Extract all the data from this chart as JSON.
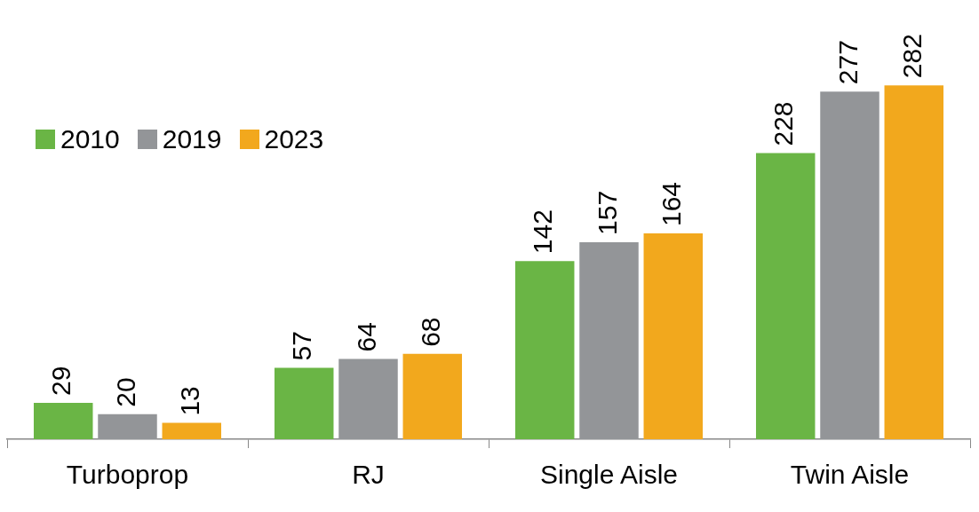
{
  "chart_data": {
    "type": "bar",
    "categories": [
      "Turboprop",
      "RJ",
      "Single Aisle",
      "Twin Aisle"
    ],
    "series": [
      {
        "name": "2010",
        "color": "#6ab545",
        "values": [
          29,
          57,
          142,
          228
        ]
      },
      {
        "name": "2019",
        "color": "#939598",
        "values": [
          20,
          64,
          157,
          277
        ]
      },
      {
        "name": "2023",
        "color": "#f2a81d",
        "values": [
          13,
          68,
          164,
          282
        ]
      }
    ],
    "data_labels": true,
    "legend": "top left"
  }
}
